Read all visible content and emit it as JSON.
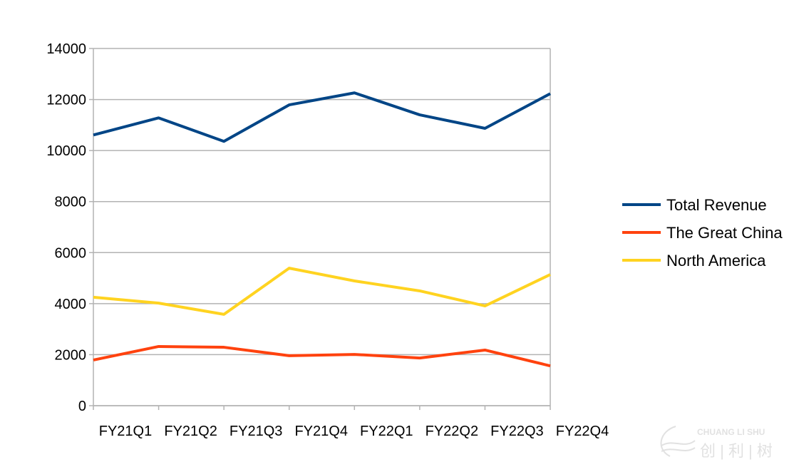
{
  "chart_data": {
    "type": "line",
    "title": "",
    "xlabel": "",
    "ylabel": "",
    "categories": [
      "FY21Q1",
      "FY21Q2",
      "FY21Q3",
      "FY21Q4",
      "FY22Q1",
      "FY22Q2",
      "FY22Q3",
      "FY22Q4"
    ],
    "ylim": [
      0,
      14000
    ],
    "yticks": [
      "0",
      "2000",
      "4000",
      "6000",
      "8000",
      "10000",
      "12000",
      "14000"
    ],
    "grid": true,
    "legend_position": "right",
    "series": [
      {
        "name": "Total Revenue",
        "color": "#004586",
        "values": [
          10610,
          11280,
          10360,
          11790,
          12260,
          11400,
          10870,
          12230
        ]
      },
      {
        "name": "The Great China",
        "color": "#ff420e",
        "values": [
          1790,
          2320,
          2290,
          1960,
          2010,
          1870,
          2180,
          1560
        ]
      },
      {
        "name": "North America",
        "color": "#ffd320",
        "values": [
          4250,
          4020,
          3580,
          5390,
          4890,
          4500,
          3910,
          5140
        ]
      }
    ]
  },
  "watermark": {
    "text_latin": "CHUANG LI SHU",
    "text_cn": "创|利|树"
  }
}
